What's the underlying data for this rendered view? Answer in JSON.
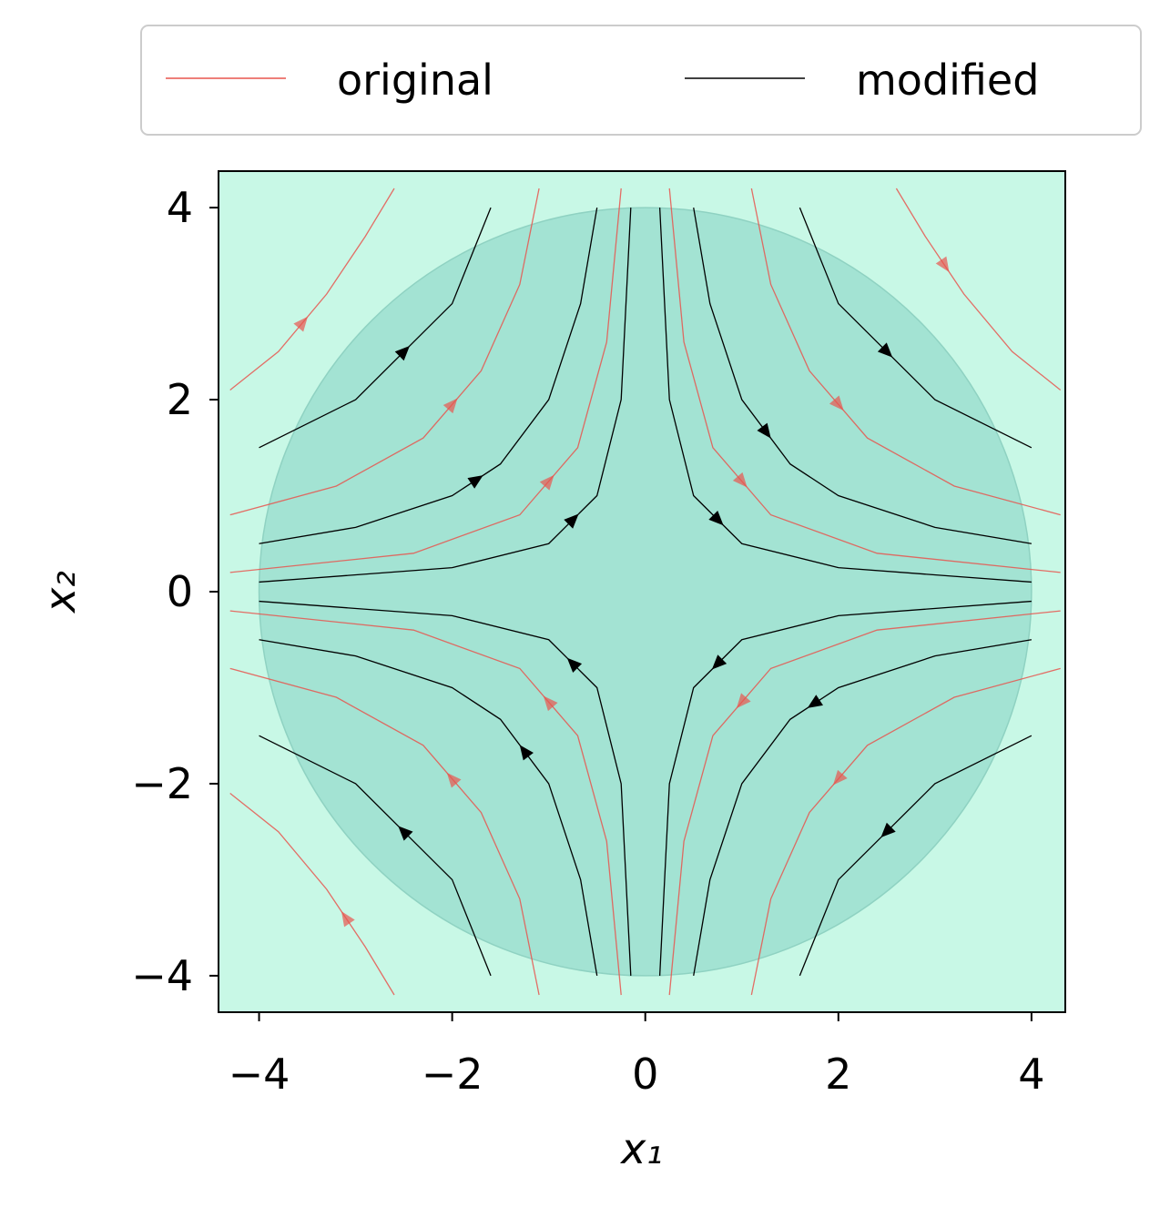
{
  "chart_data": {
    "type": "streamplot",
    "xlabel": "x₁",
    "ylabel": "x₂",
    "xlim": [
      -4.42,
      4.35
    ],
    "ylim": [
      -4.38,
      4.38
    ],
    "xticks": [
      {
        "value": -4,
        "label": "−4"
      },
      {
        "value": -2,
        "label": "−2"
      },
      0,
      2,
      4
    ],
    "yticks": [
      {
        "value": -4,
        "label": "−4"
      },
      {
        "value": -2,
        "label": "−2"
      },
      0,
      2,
      4
    ],
    "background": "#c8f8e6",
    "region": {
      "center": [
        0,
        0
      ],
      "radius": 4,
      "color": "#a3e3d3"
    },
    "legend": "upper center outside",
    "series": [
      {
        "name": "original",
        "color": "#e8554e",
        "lines": [
          {
            "x": [
              -4.3,
              -2.4,
              -1.3,
              -0.7,
              -0.4,
              -0.25
            ],
            "y": [
              0.2,
              0.4,
              0.8,
              1.5,
              2.6,
              4.2
            ]
          },
          {
            "x": [
              -4.3,
              -3.2,
              -2.3,
              -1.7,
              -1.3,
              -1.1
            ],
            "y": [
              0.8,
              1.1,
              1.6,
              2.3,
              3.2,
              4.2
            ]
          },
          {
            "x": [
              -4.3,
              -3.8,
              -3.3,
              -2.9,
              -2.6
            ],
            "y": [
              2.1,
              2.5,
              3.1,
              3.7,
              4.2
            ]
          },
          {
            "x": [
              0.25,
              0.4,
              0.7,
              1.3,
              2.4,
              4.3
            ],
            "y": [
              4.2,
              2.6,
              1.5,
              0.8,
              0.4,
              0.2
            ]
          },
          {
            "x": [
              1.1,
              1.3,
              1.7,
              2.3,
              3.2,
              4.3
            ],
            "y": [
              4.2,
              3.2,
              2.3,
              1.6,
              1.1,
              0.8
            ]
          },
          {
            "x": [
              2.6,
              2.9,
              3.3,
              3.8,
              4.3
            ],
            "y": [
              4.2,
              3.7,
              3.1,
              2.5,
              2.1
            ]
          },
          {
            "x": [
              4.3,
              2.4,
              1.3,
              0.7,
              0.4,
              0.25
            ],
            "y": [
              -0.2,
              -0.4,
              -0.8,
              -1.5,
              -2.6,
              -4.2
            ]
          },
          {
            "x": [
              4.3,
              3.2,
              2.3,
              1.7,
              1.3,
              1.1
            ],
            "y": [
              -0.8,
              -1.1,
              -1.6,
              -2.3,
              -3.2,
              -4.2
            ]
          },
          {
            "x": [
              -0.25,
              -0.4,
              -0.7,
              -1.3,
              -2.4,
              -4.3
            ],
            "y": [
              -4.2,
              -2.6,
              -1.5,
              -0.8,
              -0.4,
              -0.2
            ]
          },
          {
            "x": [
              -1.1,
              -1.3,
              -1.7,
              -2.3,
              -3.2,
              -4.3
            ],
            "y": [
              -4.2,
              -3.2,
              -2.3,
              -1.6,
              -1.1,
              -0.8
            ]
          },
          {
            "x": [
              -2.6,
              -2.9,
              -3.3,
              -3.8,
              -4.3
            ],
            "y": [
              -4.2,
              -3.7,
              -3.1,
              -2.5,
              -2.1
            ]
          }
        ]
      },
      {
        "name": "modified",
        "color": "#000000",
        "lines": [
          {
            "x": [
              -4,
              -2,
              -1,
              -0.5,
              -0.25,
              -0.15
            ],
            "y": [
              0.1,
              0.25,
              0.5,
              1,
              2,
              4
            ]
          },
          {
            "x": [
              -4,
              -3,
              -2,
              -1.5,
              -1,
              -0.67,
              -0.5
            ],
            "y": [
              0.5,
              0.67,
              1,
              1.33,
              2,
              3,
              4
            ]
          },
          {
            "x": [
              -4,
              -3,
              -2,
              -1.6
            ],
            "y": [
              1.5,
              2,
              3,
              4
            ]
          },
          {
            "x": [
              0.15,
              0.25,
              0.5,
              1,
              2,
              4
            ],
            "y": [
              4,
              2,
              1,
              0.5,
              0.25,
              0.1
            ]
          },
          {
            "x": [
              0.5,
              0.67,
              1,
              1.5,
              2,
              3,
              4
            ],
            "y": [
              4,
              3,
              2,
              1.33,
              1,
              0.67,
              0.5
            ]
          },
          {
            "x": [
              1.6,
              2,
              3,
              4
            ],
            "y": [
              4,
              3,
              2,
              1.5
            ]
          },
          {
            "x": [
              4,
              2,
              1,
              0.5,
              0.25,
              0.15
            ],
            "y": [
              -0.1,
              -0.25,
              -0.5,
              -1,
              -2,
              -4
            ]
          },
          {
            "x": [
              4,
              3,
              2,
              1.5,
              1,
              0.67,
              0.5
            ],
            "y": [
              -0.5,
              -0.67,
              -1,
              -1.33,
              -2,
              -3,
              -4
            ]
          },
          {
            "x": [
              4,
              3,
              2,
              1.6
            ],
            "y": [
              -1.5,
              -2,
              -3,
              -4
            ]
          },
          {
            "x": [
              -0.15,
              -0.25,
              -0.5,
              -1,
              -2,
              -4
            ],
            "y": [
              -4,
              -2,
              -1,
              -0.5,
              -0.25,
              -0.1
            ]
          },
          {
            "x": [
              -0.5,
              -0.67,
              -1,
              -1.5,
              -2,
              -3,
              -4
            ],
            "y": [
              -4,
              -3,
              -2,
              -1.33,
              -1,
              -0.67,
              -0.5
            ]
          },
          {
            "x": [
              -1.6,
              -2,
              -3,
              -4
            ],
            "y": [
              -4,
              -3,
              -2,
              -1.5
            ]
          }
        ]
      }
    ]
  }
}
